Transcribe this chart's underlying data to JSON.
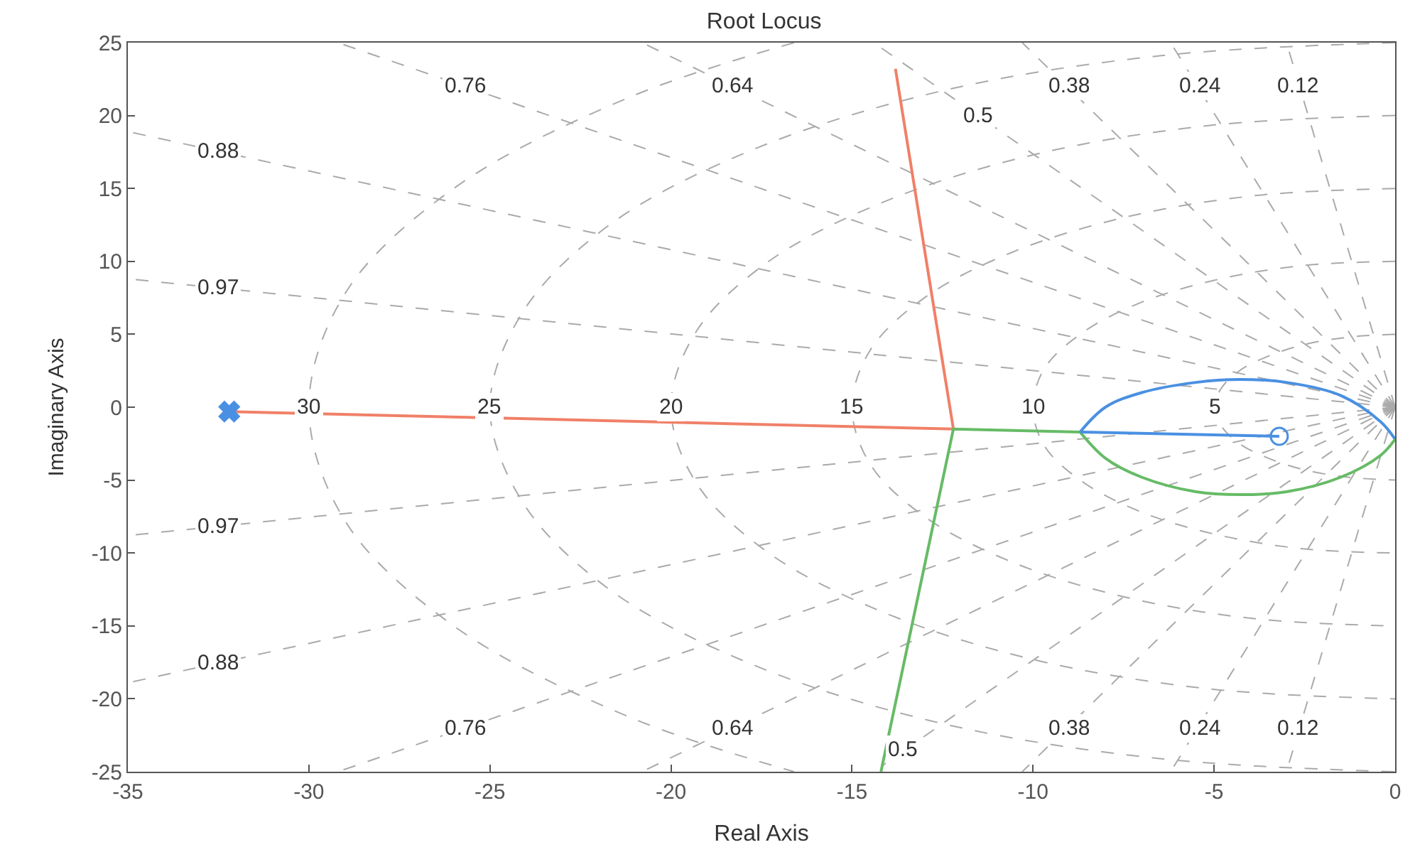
{
  "chart_data": {
    "type": "line",
    "title": "Root Locus",
    "xlabel": "Real Axis",
    "ylabel": "Imaginary Axis",
    "xlim": [
      -35,
      0
    ],
    "xticks": [
      -35,
      -30,
      -25,
      -20,
      -15,
      -10,
      -5,
      0
    ],
    "ylim": [
      -25,
      25
    ],
    "yticks": [
      -25,
      -20,
      -15,
      -10,
      -5,
      0,
      5,
      10,
      15,
      20,
      25
    ],
    "marker": "none",
    "series": [
      {
        "color": "#aaaaaa",
        "line_style": "dashed",
        "x": [
          0,
          -3
        ],
        "values": [
          0,
          25
        ]
      },
      {
        "color": "#aaaaaa",
        "line_style": "dashed",
        "x": [
          0,
          -6.2
        ],
        "values": [
          0,
          25
        ]
      },
      {
        "color": "#aaaaaa",
        "line_style": "dashed",
        "x": [
          0,
          -10.3
        ],
        "values": [
          0,
          25
        ]
      },
      {
        "color": "#aaaaaa",
        "line_style": "dashed",
        "x": [
          0,
          -14.4
        ],
        "values": [
          0,
          25
        ]
      },
      {
        "color": "#aaaaaa",
        "line_style": "dashed",
        "x": [
          0,
          -20.8
        ],
        "values": [
          0,
          25
        ]
      },
      {
        "color": "#aaaaaa",
        "line_style": "dashed",
        "x": [
          0,
          -29.2
        ],
        "values": [
          0,
          25
        ]
      },
      {
        "color": "#aaaaaa",
        "line_style": "dashed",
        "x": [
          0,
          -35
        ],
        "values": [
          0,
          18.9
        ]
      },
      {
        "color": "#aaaaaa",
        "line_style": "dashed",
        "x": [
          0,
          -35
        ],
        "values": [
          0,
          8.8
        ]
      },
      {
        "color": "#aaaaaa",
        "line_style": "dashed",
        "x": [
          0,
          -3
        ],
        "values": [
          0,
          -25
        ]
      },
      {
        "color": "#aaaaaa",
        "line_style": "dashed",
        "x": [
          0,
          -6.2
        ],
        "values": [
          0,
          -25
        ]
      },
      {
        "color": "#aaaaaa",
        "line_style": "dashed",
        "x": [
          0,
          -10.3
        ],
        "values": [
          0,
          -25
        ]
      },
      {
        "color": "#aaaaaa",
        "line_style": "dashed",
        "x": [
          0,
          -14.4
        ],
        "values": [
          0,
          -25
        ]
      },
      {
        "color": "#aaaaaa",
        "line_style": "dashed",
        "x": [
          0,
          -20.8
        ],
        "values": [
          0,
          -25
        ]
      },
      {
        "color": "#aaaaaa",
        "line_style": "dashed",
        "x": [
          0,
          -29.2
        ],
        "values": [
          0,
          -25
        ]
      },
      {
        "color": "#aaaaaa",
        "line_style": "dashed",
        "x": [
          0,
          -35
        ],
        "values": [
          0,
          -18.9
        ]
      },
      {
        "color": "#aaaaaa",
        "line_style": "dashed",
        "x": [
          0,
          -35
        ],
        "values": [
          0,
          -8.8
        ]
      },
      {
        "color": "#aaaaaa",
        "line_style": "dashed",
        "x": [
          0,
          -1.3,
          -2.5,
          -3.5,
          -4.3,
          -4.8,
          -5,
          -4.8,
          -4.3,
          -3.5,
          -2.5,
          -1.3,
          0
        ],
        "values": [
          5,
          4.8,
          4.3,
          3.5,
          2.5,
          1.3,
          0,
          -1.3,
          -2.5,
          -3.5,
          -4.3,
          -4.8,
          -5
        ]
      },
      {
        "color": "#aaaaaa",
        "line_style": "dashed",
        "x": [
          0,
          -2.6,
          -5,
          -7.1,
          -8.7,
          -9.7,
          -10,
          -9.7,
          -8.7,
          -7.1,
          -5,
          -2.6,
          0
        ],
        "values": [
          10,
          9.7,
          8.7,
          7.1,
          5,
          2.6,
          0,
          -2.6,
          -5,
          -7.1,
          -8.7,
          -9.7,
          -10
        ]
      },
      {
        "color": "#aaaaaa",
        "line_style": "dashed",
        "x": [
          0,
          -3.9,
          -7.5,
          -10.6,
          -13,
          -14.5,
          -15,
          -14.5,
          -13,
          -10.6,
          -7.5,
          -3.9,
          0
        ],
        "values": [
          15,
          14.5,
          13,
          10.6,
          7.5,
          3.9,
          0,
          -3.9,
          -7.5,
          -10.6,
          -13,
          -14.5,
          -15
        ]
      },
      {
        "color": "#aaaaaa",
        "line_style": "dashed",
        "x": [
          0,
          -5.2,
          -10,
          -14.1,
          -17.3,
          -19.3,
          -20,
          -19.3,
          -17.3,
          -14.1,
          -10,
          -5.2,
          0
        ],
        "values": [
          20,
          19.3,
          17.3,
          14.1,
          10,
          5.2,
          0,
          -5.2,
          -10,
          -14.1,
          -17.3,
          -19.3,
          -20
        ]
      },
      {
        "color": "#aaaaaa",
        "line_style": "dashed",
        "x": [
          0,
          -6.5,
          -12.5,
          -17.7,
          -21.7,
          -24.1,
          -25,
          -24.1,
          -21.7,
          -17.7,
          -12.5,
          -6.5,
          0
        ],
        "values": [
          25,
          24.1,
          21.7,
          17.7,
          12.5,
          6.5,
          0,
          -6.5,
          -12.5,
          -17.7,
          -21.7,
          -24.1,
          -25
        ]
      },
      {
        "color": "#aaaaaa",
        "line_style": "dashed",
        "x": [
          -16.6,
          -21.2,
          -26,
          -29,
          -30,
          -29,
          -26,
          -21.2,
          -16.6
        ],
        "values": [
          25,
          21.2,
          15,
          7.8,
          0,
          -7.8,
          -15,
          -21.2,
          -25
        ]
      },
      {
        "color": "#f08068",
        "line_style": "solid",
        "x": [
          -32.2,
          -12.2,
          -13.8
        ],
        "values": [
          -0.3,
          -1.5,
          23.2
        ]
      },
      {
        "color": "#66bb66",
        "line_style": "solid",
        "x": [
          -14.2,
          -12.2,
          -8.7
        ],
        "values": [
          -25,
          -1.5,
          -1.7
        ]
      },
      {
        "color": "#4a90e2",
        "line_style": "solid",
        "x": [
          -8.7,
          -8,
          -7,
          -5.5,
          -4.3,
          -3,
          -1.5,
          -0.4,
          0
        ],
        "values": [
          -1.7,
          0,
          1,
          1.7,
          1.9,
          1.7,
          0.8,
          -1,
          -2.2
        ]
      },
      {
        "color": "#66bb66",
        "line_style": "solid",
        "x": [
          -8.7,
          -8,
          -7,
          -5.5,
          -4.3,
          -3,
          -1.5,
          -0.4,
          0
        ],
        "values": [
          -1.7,
          -3.5,
          -4.8,
          -5.8,
          -6,
          -5.8,
          -4.8,
          -3.3,
          -2.2
        ]
      },
      {
        "color": "#4a90e2",
        "line_style": "solid",
        "x": [
          -8.7,
          -3.2
        ],
        "values": [
          -1.7,
          -2
        ]
      },
      {
        "type": "scatter",
        "marker": "cross",
        "color": "#4a90e2",
        "x": [
          -32.2
        ],
        "values": [
          -0.3
        ]
      },
      {
        "type": "scatter",
        "marker": "circle",
        "color": "#4a90e2",
        "x": [
          -3.2
        ],
        "values": [
          -2
        ]
      }
    ],
    "annotations": [
      {
        "text": "0.76",
        "x": -25.7,
        "y": 22
      },
      {
        "text": "0.64",
        "x": -18.3,
        "y": 22
      },
      {
        "text": "0.5",
        "x": -11.5,
        "y": 20
      },
      {
        "text": "0.38",
        "x": -9,
        "y": 22
      },
      {
        "text": "0.24",
        "x": -5.4,
        "y": 22
      },
      {
        "text": "0.12",
        "x": -2.7,
        "y": 22
      },
      {
        "text": "0.88",
        "x": -32.5,
        "y": 17.5
      },
      {
        "text": "0.97",
        "x": -32.5,
        "y": 8.2
      },
      {
        "text": "0.97",
        "x": -32.5,
        "y": -8.2
      },
      {
        "text": "0.88",
        "x": -32.5,
        "y": -17.5
      },
      {
        "text": "0.76",
        "x": -25.7,
        "y": -22
      },
      {
        "text": "0.64",
        "x": -18.3,
        "y": -22
      },
      {
        "text": "0.5",
        "x": -13.6,
        "y": -23.5
      },
      {
        "text": "0.38",
        "x": -9,
        "y": -22
      },
      {
        "text": "0.24",
        "x": -5.4,
        "y": -22
      },
      {
        "text": "0.12",
        "x": -2.7,
        "y": -22
      },
      {
        "text": "30",
        "x": -30,
        "y": 0
      },
      {
        "text": "25",
        "x": -25,
        "y": 0
      },
      {
        "text": "20",
        "x": -20,
        "y": 0
      },
      {
        "text": "15",
        "x": -15,
        "y": 0
      },
      {
        "text": "10",
        "x": -10,
        "y": 0
      },
      {
        "text": "5",
        "x": -5,
        "y": 0
      }
    ]
  }
}
